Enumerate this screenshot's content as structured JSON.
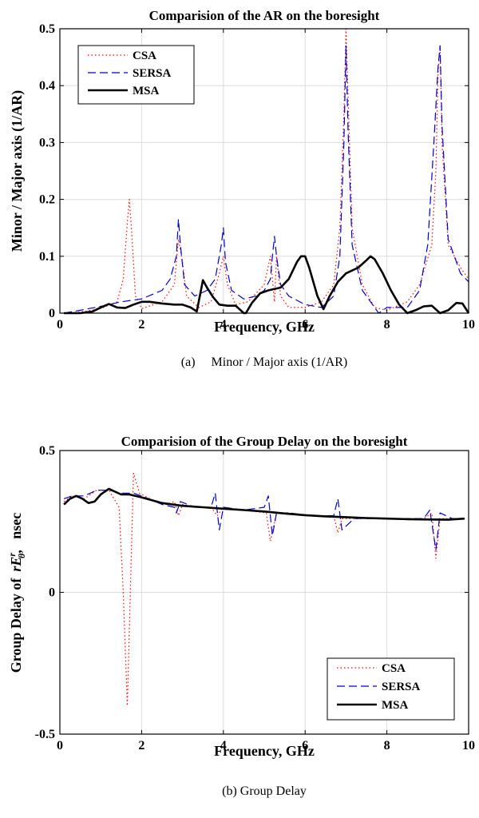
{
  "chart_data": [
    {
      "type": "line",
      "title": "Comparision of the AR on the boresight",
      "xlabel": "Frequency, GHz",
      "ylabel": "Minor / Major axis (1/AR)",
      "xlim": [
        0,
        10
      ],
      "ylim": [
        0,
        0.5
      ],
      "xticks": [
        "0",
        "2",
        "4",
        "6",
        "8",
        "10"
      ],
      "yticks": [
        "0",
        "0.1",
        "0.2",
        "0.3",
        "0.4",
        "0.5"
      ],
      "grid": true,
      "legend": "top-left",
      "caption": "(a)     Minor / Major axis (1/AR)",
      "series": [
        {
          "name": "CSA",
          "color": "#ff0000",
          "style": "dotted",
          "x": [
            0.1,
            0.5,
            1.0,
            1.4,
            1.55,
            1.65,
            1.7,
            1.75,
            1.85,
            2.0,
            2.5,
            2.8,
            2.9,
            3.0,
            3.1,
            3.4,
            3.7,
            3.9,
            4.0,
            4.1,
            4.3,
            4.6,
            5.0,
            5.15,
            5.25,
            5.3,
            5.4,
            5.6,
            6.0,
            6.4,
            6.7,
            6.85,
            6.95,
            7.0,
            7.05,
            7.15,
            7.4,
            7.7,
            8.0,
            8.5,
            8.8,
            9.1,
            9.2,
            9.25,
            9.3,
            9.35,
            9.5,
            9.8,
            10.0
          ],
          "y": [
            0.0,
            0.002,
            0.008,
            0.02,
            0.06,
            0.16,
            0.2,
            0.15,
            0.03,
            0.008,
            0.02,
            0.05,
            0.13,
            0.09,
            0.03,
            0.01,
            0.02,
            0.07,
            0.1,
            0.05,
            0.015,
            0.02,
            0.05,
            0.1,
            0.02,
            0.1,
            0.03,
            0.01,
            0.01,
            0.02,
            0.05,
            0.15,
            0.35,
            0.5,
            0.38,
            0.15,
            0.05,
            0.01,
            0.005,
            0.02,
            0.05,
            0.12,
            0.25,
            0.42,
            0.47,
            0.3,
            0.12,
            0.08,
            0.06
          ]
        },
        {
          "name": "SERSA",
          "color": "#0000cc",
          "style": "dashed",
          "x": [
            0.1,
            0.5,
            1.0,
            1.5,
            2.0,
            2.5,
            2.7,
            2.85,
            2.9,
            2.95,
            3.05,
            3.3,
            3.6,
            3.8,
            3.95,
            4.0,
            4.05,
            4.2,
            4.5,
            4.8,
            5.0,
            5.15,
            5.2,
            5.25,
            5.3,
            5.4,
            5.6,
            6.0,
            6.4,
            6.7,
            6.85,
            6.95,
            7.0,
            7.05,
            7.15,
            7.4,
            7.8,
            8.0,
            8.5,
            8.8,
            9.0,
            9.15,
            9.25,
            9.3,
            9.35,
            9.5,
            9.8,
            10.0
          ],
          "y": [
            0.0,
            0.005,
            0.012,
            0.02,
            0.025,
            0.04,
            0.06,
            0.1,
            0.165,
            0.12,
            0.05,
            0.03,
            0.04,
            0.06,
            0.12,
            0.15,
            0.09,
            0.04,
            0.025,
            0.03,
            0.04,
            0.06,
            0.1,
            0.135,
            0.1,
            0.05,
            0.03,
            0.015,
            0.01,
            0.03,
            0.1,
            0.3,
            0.47,
            0.32,
            0.12,
            0.04,
            0.0,
            0.01,
            0.01,
            0.04,
            0.12,
            0.3,
            0.43,
            0.47,
            0.33,
            0.13,
            0.07,
            0.055
          ]
        },
        {
          "name": "MSA",
          "color": "#000000",
          "style": "solid",
          "x": [
            0.1,
            0.5,
            0.8,
            1.0,
            1.2,
            1.4,
            1.6,
            1.8,
            2.0,
            2.2,
            2.5,
            2.8,
            3.0,
            3.2,
            3.35,
            3.5,
            3.6,
            3.75,
            3.9,
            4.1,
            4.3,
            4.5,
            4.55,
            4.7,
            4.9,
            5.1,
            5.4,
            5.6,
            5.8,
            5.9,
            6.0,
            6.1,
            6.3,
            6.45,
            6.6,
            6.8,
            7.0,
            7.3,
            7.5,
            7.6,
            7.7,
            7.9,
            8.1,
            8.3,
            8.5,
            8.7,
            8.9,
            9.1,
            9.3,
            9.5,
            9.7,
            9.85,
            10.0
          ],
          "y": [
            0.0,
            0.0,
            0.003,
            0.01,
            0.016,
            0.01,
            0.009,
            0.015,
            0.02,
            0.02,
            0.017,
            0.015,
            0.015,
            0.01,
            0.003,
            0.058,
            0.045,
            0.028,
            0.015,
            0.013,
            0.013,
            0.0,
            0.0,
            0.018,
            0.035,
            0.04,
            0.045,
            0.06,
            0.09,
            0.1,
            0.1,
            0.08,
            0.03,
            0.007,
            0.03,
            0.055,
            0.07,
            0.08,
            0.093,
            0.1,
            0.095,
            0.07,
            0.04,
            0.015,
            0.0,
            0.005,
            0.012,
            0.013,
            0.0,
            0.005,
            0.018,
            0.017,
            0.0
          ]
        }
      ]
    },
    {
      "type": "line",
      "title": "Comparision of the Group Delay on the boresight",
      "xlabel": "Frequency, GHz",
      "ylabel_prefix": "Group Delay of",
      "ylabel_symbol": "rE",
      "ylabel_superscript": "r",
      "ylabel_subscript": "θ",
      "ylabel_suffix": ",   nsec",
      "xlim": [
        0,
        10
      ],
      "ylim": [
        -0.5,
        0.5
      ],
      "xticks": [
        "0",
        "2",
        "4",
        "6",
        "8",
        "10"
      ],
      "yticks": [
        "-0.5",
        "0",
        "0.5"
      ],
      "grid": true,
      "legend": "bottom-right",
      "caption": "(b) Group Delay",
      "series": [
        {
          "name": "CSA",
          "color": "#ff0000",
          "style": "dotted",
          "x": [
            0.1,
            0.3,
            0.6,
            0.9,
            1.2,
            1.45,
            1.55,
            1.65,
            1.8,
            1.95,
            2.2,
            2.6,
            2.8,
            2.9,
            3.0,
            3.3,
            3.7,
            3.85,
            4.0,
            4.5,
            5.05,
            5.15,
            5.3,
            5.6,
            6.2,
            6.7,
            6.8,
            6.9,
            7.2,
            7.6,
            8.2,
            8.9,
            9.1,
            9.2,
            9.3,
            9.6,
            9.9
          ],
          "y": [
            0.32,
            0.34,
            0.33,
            0.36,
            0.36,
            0.3,
            0.0,
            -0.4,
            0.42,
            0.35,
            0.33,
            0.31,
            0.32,
            0.27,
            0.31,
            0.3,
            0.3,
            0.27,
            0.3,
            0.29,
            0.28,
            0.18,
            0.28,
            0.28,
            0.27,
            0.27,
            0.21,
            0.26,
            0.26,
            0.26,
            0.26,
            0.26,
            0.28,
            0.12,
            0.26,
            0.26,
            0.26
          ]
        },
        {
          "name": "SERSA",
          "color": "#0000cc",
          "style": "dashed",
          "x": [
            0.1,
            0.3,
            0.6,
            0.9,
            1.2,
            1.5,
            1.8,
            2.0,
            2.5,
            2.8,
            2.85,
            2.95,
            3.3,
            3.7,
            3.8,
            3.9,
            4.0,
            4.5,
            5.0,
            5.1,
            5.2,
            5.3,
            5.6,
            6.2,
            6.7,
            6.8,
            6.9,
            7.2,
            7.6,
            8.2,
            8.9,
            9.05,
            9.2,
            9.3,
            9.6,
            9.9
          ],
          "y": [
            0.33,
            0.34,
            0.34,
            0.36,
            0.36,
            0.35,
            0.35,
            0.34,
            0.31,
            0.3,
            0.28,
            0.32,
            0.3,
            0.3,
            0.35,
            0.22,
            0.3,
            0.29,
            0.3,
            0.34,
            0.2,
            0.28,
            0.28,
            0.27,
            0.27,
            0.33,
            0.22,
            0.26,
            0.26,
            0.26,
            0.26,
            0.29,
            0.15,
            0.28,
            0.26,
            0.26
          ]
        },
        {
          "name": "MSA",
          "color": "#000000",
          "style": "solid",
          "x": [
            0.1,
            0.25,
            0.4,
            0.55,
            0.7,
            0.85,
            1.0,
            1.2,
            1.35,
            1.5,
            1.7,
            2.0,
            2.5,
            3.0,
            3.5,
            4.0,
            4.5,
            5.0,
            5.5,
            6.0,
            6.5,
            7.0,
            7.5,
            8.0,
            8.5,
            9.0,
            9.5,
            9.9
          ],
          "y": [
            0.31,
            0.33,
            0.34,
            0.33,
            0.315,
            0.32,
            0.345,
            0.365,
            0.355,
            0.345,
            0.345,
            0.335,
            0.315,
            0.305,
            0.3,
            0.295,
            0.29,
            0.285,
            0.278,
            0.272,
            0.268,
            0.265,
            0.262,
            0.26,
            0.258,
            0.257,
            0.256,
            0.26
          ]
        }
      ]
    }
  ]
}
